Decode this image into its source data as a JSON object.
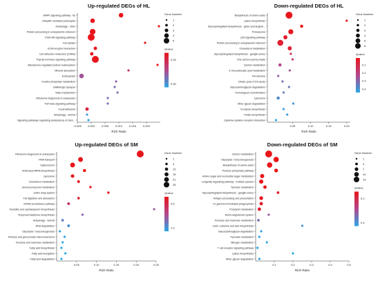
{
  "chart_data": [
    {
      "type": "scatter",
      "title": "Up-regulated DEGs of HL",
      "xlabel": "Rich Ratio",
      "xlim": [
        -0.005,
        0.025
      ],
      "xticks": [
        "-0.005",
        "0.000",
        "0.005",
        "0.010",
        "0.015",
        "0.020"
      ],
      "xtick_values": [
        -0.005,
        0.0,
        0.005,
        0.01,
        0.015,
        0.02
      ],
      "size_legend": {
        "title": "Gene Number",
        "labels": [
          "1",
          "2",
          "3",
          "4",
          "5"
        ]
      },
      "color_legend": {
        "title": "Qvalue",
        "labels": [
          "0.25",
          "0.30"
        ],
        "low": "#e8161b",
        "high": "#2ba7e5"
      },
      "terms": [
        {
          "name": "MAPK signaling pathway - fly",
          "x": 0.0108,
          "size": 3,
          "q": 0.2
        },
        {
          "name": "Ubiquitin mediated proteolysis",
          "x": 0.0005,
          "size": 3,
          "q": 0.2
        },
        {
          "name": "Autophagy - other",
          "x": 0.0245,
          "size": 1,
          "q": 0.2
        },
        {
          "name": "Protein processing in endoplasmic reticulum",
          "x": 0.0005,
          "size": 4,
          "q": 0.2
        },
        {
          "name": "PI3K-Akt signaling pathway",
          "x": 0.0,
          "size": 5,
          "q": 0.2
        },
        {
          "name": "Ferroptosis",
          "x": 0.0195,
          "size": 1,
          "q": 0.2
        },
        {
          "name": "ECM-receptor interaction",
          "x": 0.0015,
          "size": 2,
          "q": 0.2
        },
        {
          "name": "Cell adhesion molecules (CAMs)",
          "x": 0.0002,
          "size": 2,
          "q": 0.2
        },
        {
          "name": "Thyroid hormone signaling pathway",
          "x": 0.0015,
          "size": 5,
          "q": 0.2
        },
        {
          "name": "Aldosterone-regulated sodium reabsorption",
          "x": 0.024,
          "size": 1,
          "q": 0.2
        },
        {
          "name": "Mineral absorption",
          "x": 0.0135,
          "size": 1,
          "q": 0.24
        },
        {
          "name": "Endocytosis",
          "x": -0.0035,
          "size": 3,
          "q": 0.28
        },
        {
          "name": "Inositol phosphate metabolism",
          "x": 0.009,
          "size": 1,
          "q": 0.29
        },
        {
          "name": "GABAergic synapse",
          "x": 0.0085,
          "size": 1,
          "q": 0.3
        },
        {
          "name": "Taste transduction",
          "x": 0.0095,
          "size": 1,
          "q": 0.3
        },
        {
          "name": "Ribosome biogenesis in eukaryotes",
          "x": 0.006,
          "size": 1,
          "q": 0.3
        },
        {
          "name": "TGF-beta signaling pathway",
          "x": 0.006,
          "size": 1,
          "q": 0.3
        },
        {
          "name": "Focal adhesion",
          "x": -0.0015,
          "size": 2,
          "q": 0.22
        },
        {
          "name": "Autophagy - animal",
          "x": -0.0015,
          "size": 1,
          "q": 0.33
        },
        {
          "name": "Signaling pathways regulating pluripotency of stem...",
          "x": -0.001,
          "size": 1,
          "q": 0.34
        }
      ]
    },
    {
      "type": "scatter",
      "title": "Down-regulated DEGs of HL",
      "xlabel": "Rich Ratio",
      "xlim": [
        -0.02,
        0.21
      ],
      "xticks": [
        "0.05",
        "0.10",
        "0.15",
        "0.20"
      ],
      "xtick_values": [
        0.05,
        0.1,
        0.15,
        0.2
      ],
      "size_legend": {
        "title": "Gene Number",
        "labels": [
          "1",
          "2",
          "3",
          "4",
          "5",
          "6"
        ]
      },
      "color_legend": {
        "title": "Qvalue",
        "labels": [
          "0.1",
          "0.2",
          "0.3",
          "0.4"
        ],
        "low": "#e8161b",
        "high": "#2ba7e5"
      },
      "terms": [
        {
          "name": "Biosynthesis of amino acids",
          "x": 0.04,
          "size": 6,
          "q": 0.02
        },
        {
          "name": "Lysine biosynthesis",
          "x": 0.2,
          "size": 1,
          "q": 0.02
        },
        {
          "name": "Glycosphingolipid biosynthesis - globo and isoglob...",
          "x": 0.075,
          "size": 2,
          "q": 0.02
        },
        {
          "name": "Proteasome",
          "x": 0.045,
          "size": 4,
          "q": 0.03
        },
        {
          "name": "p53 signaling pathway",
          "x": 0.03,
          "size": 3,
          "q": 0.05
        },
        {
          "name": "Protein processing in endoplasmic reticulum",
          "x": 0.016,
          "size": 5,
          "q": 0.06
        },
        {
          "name": "Cholesterol metabolism",
          "x": 0.042,
          "size": 3,
          "q": 0.06
        },
        {
          "name": "Glycosphingolipid biosynthesis - ganglio series",
          "x": 0.045,
          "size": 1,
          "q": 0.12
        },
        {
          "name": "One carbon pool by folate",
          "x": 0.05,
          "size": 1,
          "q": 0.15
        },
        {
          "name": "Carbon metabolism",
          "x": 0.015,
          "size": 2,
          "q": 0.22
        },
        {
          "name": "2-Oxocarboxylic acid metabolism",
          "x": 0.042,
          "size": 1,
          "q": 0.25
        },
        {
          "name": "Peroxisome",
          "x": 0.01,
          "size": 1,
          "q": 0.28
        },
        {
          "name": "Citrate cycle (TCA cycle)",
          "x": 0.022,
          "size": 1,
          "q": 0.3
        },
        {
          "name": "Glycosaminoglycan degradation",
          "x": 0.04,
          "size": 1,
          "q": 0.32
        },
        {
          "name": "Homologous recombination",
          "x": 0.025,
          "size": 1,
          "q": 0.33
        },
        {
          "name": "Lysosome",
          "x": 0.01,
          "size": 2,
          "q": 0.36
        },
        {
          "name": "Other glycan degradation",
          "x": 0.052,
          "size": 1,
          "q": 0.38
        },
        {
          "name": "N-Glycan biosynthesis",
          "x": 0.025,
          "size": 1,
          "q": 0.4
        },
        {
          "name": "Folate biosynthesis",
          "x": 0.035,
          "size": 1,
          "q": 0.4
        },
        {
          "name": "Cytokine-cytokine receptor interaction",
          "x": 0.004,
          "size": 1,
          "q": 0.42
        }
      ]
    },
    {
      "type": "scatter",
      "title": "Up-regulated DEGs of SM",
      "xlabel": "Rich Ratio",
      "xlim": [
        0.0,
        0.25
      ],
      "xticks": [
        "0.05",
        "0.10",
        "0.15",
        "0.20",
        "0.25"
      ],
      "xtick_values": [
        0.05,
        0.1,
        0.15,
        0.2,
        0.25
      ],
      "size_legend": {
        "title": "Gene Number",
        "labels": [
          "1",
          "4",
          "10",
          "15",
          "21",
          "26"
        ]
      },
      "color_legend": {
        "title": "Qvalue",
        "labels": [
          "0.5",
          "1.0"
        ],
        "low": "#e8161b",
        "high": "#2ba7e5"
      },
      "terms": [
        {
          "name": "Ribosome biogenesis in eukaryotes",
          "x": 0.21,
          "size": 26,
          "q": 0.0
        },
        {
          "name": "RNA transport",
          "x": 0.06,
          "size": 15,
          "q": 0.0
        },
        {
          "name": "Spliceosome",
          "x": 0.04,
          "size": 15,
          "q": 0.0
        },
        {
          "name": "Aminoacyl-tRNA biosynthesis",
          "x": 0.07,
          "size": 6,
          "q": 0.0
        },
        {
          "name": "Lysosome",
          "x": 0.04,
          "size": 8,
          "q": 0.0
        },
        {
          "name": "Cholesterol metabolism",
          "x": 0.055,
          "size": 4,
          "q": 0.0
        },
        {
          "name": "Selenocompound metabolism",
          "x": 0.085,
          "size": 2,
          "q": 0.02
        },
        {
          "name": "Sulfur relay system",
          "x": 0.13,
          "size": 2,
          "q": 0.05
        },
        {
          "name": "Fat digestion and absorption",
          "x": 0.055,
          "size": 3,
          "q": 0.1
        },
        {
          "name": "mRNA surveillance pathway",
          "x": 0.03,
          "size": 4,
          "q": 0.3
        },
        {
          "name": "Penicillin and cephalosporin biosynthesis",
          "x": 0.245,
          "size": 1,
          "q": 0.6
        },
        {
          "name": "Terpenoid backbone biosynthesis",
          "x": 0.065,
          "size": 1,
          "q": 0.65
        },
        {
          "name": "Autophagy - animal",
          "x": 0.015,
          "size": 3,
          "q": 0.8
        },
        {
          "name": "RNA degradation",
          "x": 0.03,
          "size": 4,
          "q": 0.88
        },
        {
          "name": "Glycolysis / Gluconeogenesis",
          "x": 0.008,
          "size": 1,
          "q": 0.95
        },
        {
          "name": "Pentose and glucuronate interconversions",
          "x": 0.02,
          "size": 1,
          "q": 0.98
        },
        {
          "name": "Fructose and mannose metabolism",
          "x": 0.015,
          "size": 1,
          "q": 1.0
        },
        {
          "name": "Fatty acid biosynthesis",
          "x": 0.012,
          "size": 1,
          "q": 1.0
        },
        {
          "name": "Fatty acid elongation",
          "x": 0.022,
          "size": 1,
          "q": 1.0
        },
        {
          "name": "Fatty acid degradation",
          "x": 0.012,
          "size": 1,
          "q": 1.0
        }
      ]
    },
    {
      "type": "scatter",
      "title": "Down-regulated DEGs of SM",
      "xlabel": "Rich Ratio",
      "xlim": [
        0.0,
        0.5
      ],
      "xticks": [
        "0.1",
        "0.2",
        "0.3",
        "0.4",
        "0.5"
      ],
      "xtick_values": [
        0.1,
        0.2,
        0.3,
        0.4,
        0.5
      ],
      "size_legend": {
        "title": "Gene Number",
        "labels": [
          "1",
          "4",
          "7",
          "10",
          "13"
        ]
      },
      "color_legend": {
        "title": "Qvalue",
        "labels": [
          "0.2",
          "0.4"
        ],
        "low": "#e8161b",
        "high": "#2ba7e5"
      },
      "terms": [
        {
          "name": "Carbon metabolism",
          "x": 0.07,
          "size": 13,
          "q": 0.0
        },
        {
          "name": "Glycolysis / Gluconeogenesis",
          "x": 0.11,
          "size": 9,
          "q": 0.0
        },
        {
          "name": "Biosynthesis of amino acids",
          "x": 0.075,
          "size": 9,
          "q": 0.0
        },
        {
          "name": "Pentose phosphate pathway",
          "x": 0.11,
          "size": 5,
          "q": 0.0
        },
        {
          "name": "Amino sugar and nucleotide sugar metabolism",
          "x": 0.035,
          "size": 6,
          "q": 0.0
        },
        {
          "name": "Longevity regulating pathway - multiple species",
          "x": 0.03,
          "size": 6,
          "q": 0.0
        },
        {
          "name": "Tyrosine metabolism",
          "x": 0.05,
          "size": 4,
          "q": 0.0
        },
        {
          "name": "Glycosphingolipid biosynthesis - ganglio series",
          "x": 0.12,
          "size": 2,
          "q": 0.02
        },
        {
          "name": "Antigen processing and presentation",
          "x": 0.03,
          "size": 5,
          "q": 0.02
        },
        {
          "name": "Fc gamma R-mediated phagocytosis",
          "x": 0.03,
          "size": 4,
          "q": 0.03
        },
        {
          "name": "Porphyrin metabolism",
          "x": 0.02,
          "size": 4,
          "q": 0.04
        },
        {
          "name": "Renin-angiotensin system",
          "x": 0.07,
          "size": 1,
          "q": 0.3
        },
        {
          "name": "Fructose and mannose metabolism",
          "x": 0.015,
          "size": 2,
          "q": 0.35
        },
        {
          "name": "Cutin, suberine and wax biosynthesis",
          "x": 0.25,
          "size": 1,
          "q": 0.45
        },
        {
          "name": "Glycosaminoglycan degradation",
          "x": 0.03,
          "size": 1,
          "q": 0.48
        },
        {
          "name": "Pyruvate metabolism",
          "x": 0.02,
          "size": 1,
          "q": 0.5
        },
        {
          "name": "Nitrogen metabolism",
          "x": 0.06,
          "size": 1,
          "q": 0.5
        },
        {
          "name": "T cell receptor signaling pathway",
          "x": 0.01,
          "size": 1,
          "q": 0.5
        },
        {
          "name": "Lysine biosynthesis",
          "x": 0.2,
          "size": 1,
          "q": 0.5
        },
        {
          "name": "Other glycan degradation",
          "x": 0.02,
          "size": 1,
          "q": 0.5
        }
      ]
    }
  ]
}
